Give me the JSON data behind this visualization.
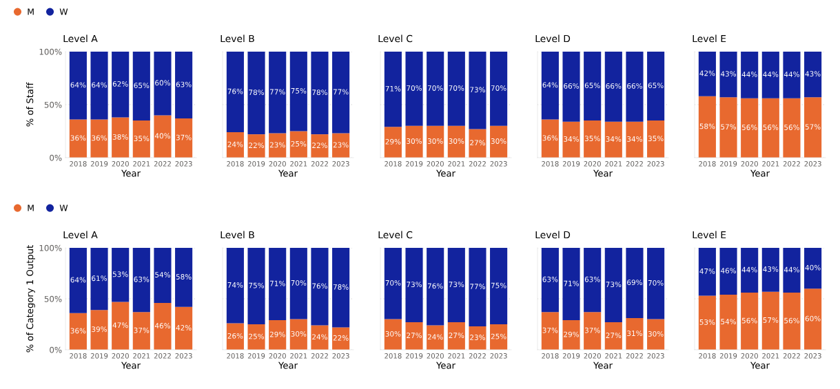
{
  "chart_data": [
    {
      "type": "bar",
      "stacked": true,
      "title": "Level A",
      "xlabel": "Year",
      "ylabel": "% of Staff",
      "legend": "top left",
      "grid": "y",
      "categories": [
        "2018",
        "2019",
        "2020",
        "2021",
        "2022",
        "2023"
      ],
      "ylim": [
        0,
        100
      ],
      "yticks": [
        {
          "value": 0,
          "label": "0%"
        },
        {
          "value": 50,
          "label": "50%"
        },
        {
          "value": 100,
          "label": "100%"
        }
      ],
      "series": [
        {
          "name": "M",
          "color": "#e8692f",
          "values": [
            36,
            36,
            38,
            35,
            40,
            37
          ],
          "value_labels": [
            "36%",
            "36%",
            "38%",
            "35%",
            "40%",
            "37%"
          ]
        },
        {
          "name": "W",
          "color": "#12239e",
          "values": [
            64,
            64,
            62,
            65,
            60,
            63
          ],
          "value_labels": [
            "64%",
            "64%",
            "62%",
            "65%",
            "60%",
            "63%"
          ]
        }
      ]
    },
    {
      "type": "bar",
      "stacked": true,
      "title": "Level B",
      "xlabel": "Year",
      "tick_labels": "x",
      "grid": "y",
      "categories": [
        "2018",
        "2019",
        "2020",
        "2021",
        "2022",
        "2023"
      ],
      "ylim": [
        0,
        100
      ],
      "series": [
        {
          "color": "#e8692f",
          "values": [
            24,
            22,
            23,
            25,
            22,
            23
          ],
          "value_labels": [
            "24%",
            "22%",
            "23%",
            "25%",
            "22%",
            "23%"
          ]
        },
        {
          "color": "#12239e",
          "values": [
            76,
            78,
            77,
            75,
            78,
            77
          ],
          "value_labels": [
            "76%",
            "78%",
            "77%",
            "75%",
            "78%",
            "77%"
          ]
        }
      ]
    },
    {
      "type": "bar",
      "stacked": true,
      "title": "Level C",
      "xlabel": "Year",
      "tick_labels": "x",
      "grid": "y",
      "categories": [
        "2018",
        "2019",
        "2020",
        "2021",
        "2022",
        "2023"
      ],
      "ylim": [
        0,
        100
      ],
      "series": [
        {
          "color": "#e8692f",
          "values": [
            29,
            30,
            30,
            30,
            27,
            30
          ],
          "value_labels": [
            "29%",
            "30%",
            "30%",
            "30%",
            "27%",
            "30%"
          ]
        },
        {
          "color": "#12239e",
          "values": [
            71,
            70,
            70,
            70,
            73,
            70
          ],
          "value_labels": [
            "71%",
            "70%",
            "70%",
            "70%",
            "73%",
            "70%"
          ]
        }
      ]
    },
    {
      "type": "bar",
      "stacked": true,
      "title": "Level D",
      "xlabel": "Year",
      "tick_labels": "x",
      "grid": "y",
      "categories": [
        "2018",
        "2019",
        "2020",
        "2021",
        "2022",
        "2023"
      ],
      "ylim": [
        0,
        100
      ],
      "series": [
        {
          "color": "#e8692f",
          "values": [
            36,
            34,
            35,
            34,
            34,
            35
          ],
          "value_labels": [
            "36%",
            "34%",
            "35%",
            "34%",
            "34%",
            "35%"
          ]
        },
        {
          "color": "#12239e",
          "values": [
            64,
            66,
            65,
            66,
            66,
            65
          ],
          "value_labels": [
            "64%",
            "66%",
            "65%",
            "66%",
            "66%",
            "65%"
          ]
        }
      ]
    },
    {
      "type": "bar",
      "stacked": true,
      "title": "Level E",
      "xlabel": "Year",
      "tick_labels": "x",
      "grid": "y",
      "categories": [
        "2018",
        "2019",
        "2020",
        "2021",
        "2022",
        "2023"
      ],
      "ylim": [
        0,
        100
      ],
      "series": [
        {
          "color": "#e8692f",
          "values": [
            58,
            57,
            56,
            56,
            56,
            57
          ],
          "value_labels": [
            "58%",
            "57%",
            "56%",
            "56%",
            "56%",
            "57%"
          ]
        },
        {
          "color": "#12239e",
          "values": [
            42,
            43,
            44,
            44,
            44,
            43
          ],
          "value_labels": [
            "42%",
            "43%",
            "44%",
            "44%",
            "44%",
            "43%"
          ]
        }
      ]
    },
    {
      "type": "bar",
      "stacked": true,
      "title": "Level A",
      "xlabel": "Year",
      "ylabel": "% of Category 1 Output",
      "legend": "top left",
      "grid": "y",
      "categories": [
        "2018",
        "2019",
        "2020",
        "2021",
        "2022",
        "2023"
      ],
      "ylim": [
        0,
        100
      ],
      "yticks": [
        {
          "value": 0,
          "label": "0%"
        },
        {
          "value": 50,
          "label": "50%"
        },
        {
          "value": 100,
          "label": "100%"
        }
      ],
      "series": [
        {
          "name": "M",
          "color": "#e8692f",
          "values": [
            36,
            39,
            47,
            37,
            46,
            42
          ],
          "value_labels": [
            "36%",
            "39%",
            "47%",
            "37%",
            "46%",
            "42%"
          ]
        },
        {
          "name": "W",
          "color": "#12239e",
          "values": [
            64,
            61,
            53,
            63,
            54,
            58
          ],
          "value_labels": [
            "64%",
            "61%",
            "53%",
            "63%",
            "54%",
            "58%"
          ]
        }
      ]
    },
    {
      "type": "bar",
      "stacked": true,
      "title": "Level B",
      "xlabel": "Year",
      "tick_labels": "x",
      "grid": "y",
      "categories": [
        "2018",
        "2019",
        "2020",
        "2021",
        "2022",
        "2023"
      ],
      "ylim": [
        0,
        100
      ],
      "series": [
        {
          "color": "#e8692f",
          "values": [
            26,
            25,
            29,
            30,
            24,
            22
          ],
          "value_labels": [
            "26%",
            "25%",
            "29%",
            "30%",
            "24%",
            "22%"
          ]
        },
        {
          "color": "#12239e",
          "values": [
            74,
            75,
            71,
            70,
            76,
            78
          ],
          "value_labels": [
            "74%",
            "75%",
            "71%",
            "70%",
            "76%",
            "78%"
          ]
        }
      ]
    },
    {
      "type": "bar",
      "stacked": true,
      "title": "Level C",
      "xlabel": "Year",
      "tick_labels": "x",
      "grid": "y",
      "categories": [
        "2018",
        "2019",
        "2020",
        "2021",
        "2022",
        "2023"
      ],
      "ylim": [
        0,
        100
      ],
      "series": [
        {
          "color": "#e8692f",
          "values": [
            30,
            27,
            24,
            27,
            23,
            25
          ],
          "value_labels": [
            "30%",
            "27%",
            "24%",
            "27%",
            "23%",
            "25%"
          ]
        },
        {
          "color": "#12239e",
          "values": [
            70,
            73,
            76,
            73,
            77,
            75
          ],
          "value_labels": [
            "70%",
            "73%",
            "76%",
            "73%",
            "77%",
            "75%"
          ]
        }
      ]
    },
    {
      "type": "bar",
      "stacked": true,
      "title": "Level D",
      "xlabel": "Year",
      "tick_labels": "x",
      "grid": "y",
      "categories": [
        "2018",
        "2019",
        "2020",
        "2021",
        "2022",
        "2023"
      ],
      "ylim": [
        0,
        100
      ],
      "series": [
        {
          "color": "#e8692f",
          "values": [
            37,
            29,
            37,
            27,
            31,
            30
          ],
          "value_labels": [
            "37%",
            "29%",
            "37%",
            "27%",
            "31%",
            "30%"
          ]
        },
        {
          "color": "#12239e",
          "values": [
            63,
            71,
            63,
            73,
            69,
            70
          ],
          "value_labels": [
            "63%",
            "71%",
            "63%",
            "73%",
            "69%",
            "70%"
          ]
        }
      ]
    },
    {
      "type": "bar",
      "stacked": true,
      "title": "Level E",
      "xlabel": "Year",
      "tick_labels": "x",
      "grid": "y",
      "categories": [
        "2018",
        "2019",
        "2020",
        "2021",
        "2022",
        "2023"
      ],
      "ylim": [
        0,
        100
      ],
      "series": [
        {
          "color": "#e8692f",
          "values": [
            53,
            54,
            56,
            57,
            56,
            60
          ],
          "value_labels": [
            "53%",
            "54%",
            "56%",
            "57%",
            "56%",
            "60%"
          ]
        },
        {
          "color": "#12239e",
          "values": [
            47,
            46,
            44,
            43,
            44,
            40
          ],
          "value_labels": [
            "47%",
            "46%",
            "44%",
            "43%",
            "44%",
            "40%"
          ]
        }
      ]
    }
  ]
}
